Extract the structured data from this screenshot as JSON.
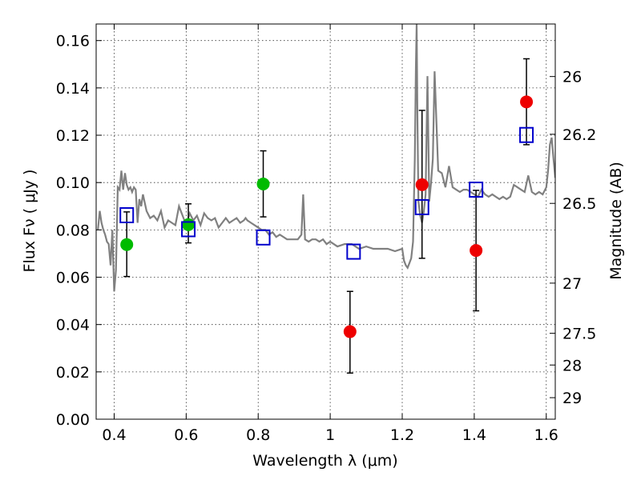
{
  "chart_data": {
    "type": "scatter",
    "xlabel": "Wavelength  λ (μm)",
    "ylabel": "Flux  Fν  ( μJy )",
    "y2label": "Magnitude (AB)",
    "xlim": [
      0.35,
      1.625
    ],
    "ylim": [
      0.0,
      0.167
    ],
    "x_ticks": [
      0.4,
      0.6,
      0.8,
      1.0,
      1.2,
      1.4,
      1.6
    ],
    "x_tick_labels": [
      "0.4",
      "0.6",
      "0.8",
      "1",
      "1.2",
      "1.4",
      "1.6"
    ],
    "y_ticks": [
      0.0,
      0.02,
      0.04,
      0.06,
      0.08,
      0.1,
      0.12,
      0.14,
      0.16
    ],
    "y_tick_labels": [
      "0.00",
      "0.02",
      "0.04",
      "0.06",
      "0.08",
      "0.10",
      "0.12",
      "0.14",
      "0.16"
    ],
    "y2_ticks": [
      {
        "label": "26",
        "flux": 0.1448
      },
      {
        "label": "26.2",
        "flux": 0.1204
      },
      {
        "label": "26.5",
        "flux": 0.0912
      },
      {
        "label": "27",
        "flux": 0.0575
      },
      {
        "label": "27.5",
        "flux": 0.0363
      },
      {
        "label": "28",
        "flux": 0.0229
      },
      {
        "label": "29",
        "flux": 0.0091
      }
    ],
    "grid": true,
    "series": [
      {
        "marker": "circle",
        "color": "#00bb00",
        "points": [
          {
            "x": 0.435,
            "y": 0.0738,
            "yerr_low": 0.0603,
            "yerr_high": 0.0876
          },
          {
            "x": 0.606,
            "y": 0.0822,
            "yerr_low": 0.0745,
            "yerr_high": 0.091
          },
          {
            "x": 0.814,
            "y": 0.0994,
            "yerr_low": 0.0855,
            "yerr_high": 0.1134
          }
        ]
      },
      {
        "marker": "circle",
        "color": "#ee0000",
        "points": [
          {
            "x": 1.055,
            "y": 0.037,
            "yerr_low": 0.0195,
            "yerr_high": 0.054
          },
          {
            "x": 1.255,
            "y": 0.0991,
            "yerr_low": 0.068,
            "yerr_high": 0.1305
          },
          {
            "x": 1.405,
            "y": 0.0713,
            "yerr_low": 0.0458,
            "yerr_high": 0.0967
          },
          {
            "x": 1.545,
            "y": 0.1341,
            "yerr_low": 0.116,
            "yerr_high": 0.1523
          }
        ]
      },
      {
        "marker": "square",
        "color": "#0000cc",
        "points": [
          {
            "x": 0.435,
            "y": 0.0862
          },
          {
            "x": 0.606,
            "y": 0.0803
          },
          {
            "x": 0.814,
            "y": 0.0768
          },
          {
            "x": 1.065,
            "y": 0.0708
          },
          {
            "x": 1.255,
            "y": 0.0896
          },
          {
            "x": 1.405,
            "y": 0.097
          },
          {
            "x": 1.545,
            "y": 0.1201
          }
        ]
      },
      {
        "type": "line",
        "color": "#808080",
        "x": [
          0.355,
          0.36,
          0.365,
          0.37,
          0.375,
          0.38,
          0.385,
          0.39,
          0.395,
          0.4,
          0.405,
          0.41,
          0.415,
          0.42,
          0.425,
          0.43,
          0.435,
          0.44,
          0.445,
          0.45,
          0.455,
          0.46,
          0.465,
          0.47,
          0.475,
          0.48,
          0.49,
          0.5,
          0.51,
          0.52,
          0.53,
          0.54,
          0.55,
          0.56,
          0.57,
          0.58,
          0.59,
          0.6,
          0.61,
          0.62,
          0.63,
          0.64,
          0.65,
          0.66,
          0.67,
          0.68,
          0.69,
          0.7,
          0.71,
          0.72,
          0.73,
          0.74,
          0.75,
          0.76,
          0.765,
          0.77,
          0.78,
          0.79,
          0.8,
          0.81,
          0.82,
          0.83,
          0.84,
          0.85,
          0.86,
          0.87,
          0.88,
          0.89,
          0.9,
          0.91,
          0.92,
          0.925,
          0.93,
          0.94,
          0.95,
          0.96,
          0.97,
          0.98,
          0.99,
          1.0,
          1.02,
          1.04,
          1.06,
          1.08,
          1.1,
          1.12,
          1.14,
          1.16,
          1.18,
          1.2,
          1.205,
          1.21,
          1.215,
          1.22,
          1.225,
          1.23,
          1.235,
          1.238,
          1.24,
          1.242,
          1.245,
          1.25,
          1.255,
          1.26,
          1.265,
          1.27,
          1.275,
          1.28,
          1.285,
          1.29,
          1.3,
          1.31,
          1.32,
          1.33,
          1.34,
          1.35,
          1.36,
          1.37,
          1.38,
          1.39,
          1.4,
          1.41,
          1.42,
          1.43,
          1.44,
          1.45,
          1.46,
          1.47,
          1.48,
          1.49,
          1.5,
          1.51,
          1.52,
          1.53,
          1.54,
          1.55,
          1.56,
          1.57,
          1.58,
          1.59,
          1.6,
          1.605,
          1.61,
          1.615,
          1.62,
          1.625
        ],
        "y": [
          0.08,
          0.088,
          0.083,
          0.08,
          0.078,
          0.075,
          0.074,
          0.065,
          0.08,
          0.054,
          0.063,
          0.098,
          0.097,
          0.105,
          0.097,
          0.104,
          0.099,
          0.097,
          0.098,
          0.096,
          0.098,
          0.097,
          0.083,
          0.093,
          0.09,
          0.095,
          0.088,
          0.085,
          0.086,
          0.084,
          0.088,
          0.081,
          0.084,
          0.083,
          0.082,
          0.09,
          0.086,
          0.082,
          0.087,
          0.084,
          0.086,
          0.082,
          0.087,
          0.085,
          0.084,
          0.085,
          0.081,
          0.083,
          0.085,
          0.083,
          0.084,
          0.085,
          0.083,
          0.084,
          0.085,
          0.084,
          0.083,
          0.082,
          0.081,
          0.08,
          0.08,
          0.078,
          0.079,
          0.077,
          0.078,
          0.077,
          0.076,
          0.076,
          0.076,
          0.076,
          0.078,
          0.095,
          0.076,
          0.075,
          0.076,
          0.076,
          0.075,
          0.076,
          0.074,
          0.075,
          0.073,
          0.074,
          0.074,
          0.072,
          0.073,
          0.072,
          0.072,
          0.072,
          0.071,
          0.072,
          0.067,
          0.065,
          0.064,
          0.066,
          0.068,
          0.075,
          0.11,
          0.15,
          0.167,
          0.13,
          0.092,
          0.086,
          0.083,
          0.088,
          0.095,
          0.145,
          0.092,
          0.1,
          0.11,
          0.147,
          0.105,
          0.104,
          0.098,
          0.107,
          0.098,
          0.097,
          0.096,
          0.097,
          0.097,
          0.096,
          0.095,
          0.094,
          0.097,
          0.095,
          0.094,
          0.095,
          0.094,
          0.093,
          0.094,
          0.093,
          0.094,
          0.099,
          0.098,
          0.097,
          0.096,
          0.103,
          0.096,
          0.095,
          0.096,
          0.095,
          0.098,
          0.105,
          0.116,
          0.119,
          0.11,
          0.102
        ]
      }
    ]
  }
}
